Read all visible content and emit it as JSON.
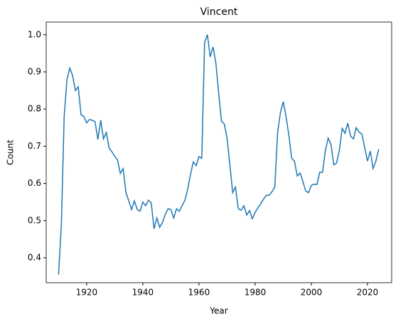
{
  "chart_data": {
    "type": "line",
    "title": "Vincent",
    "x_label": "Year",
    "y_label": "Count",
    "x": [
      1910,
      1911,
      1912,
      1913,
      1914,
      1915,
      1916,
      1917,
      1918,
      1919,
      1920,
      1921,
      1922,
      1923,
      1924,
      1925,
      1926,
      1927,
      1928,
      1929,
      1930,
      1931,
      1932,
      1933,
      1934,
      1935,
      1936,
      1937,
      1938,
      1939,
      1940,
      1941,
      1942,
      1943,
      1944,
      1945,
      1946,
      1947,
      1948,
      1949,
      1950,
      1951,
      1952,
      1953,
      1954,
      1955,
      1956,
      1957,
      1958,
      1959,
      1960,
      1961,
      1962,
      1963,
      1964,
      1965,
      1966,
      1967,
      1968,
      1969,
      1970,
      1971,
      1972,
      1973,
      1974,
      1975,
      1976,
      1977,
      1978,
      1979,
      1980,
      1981,
      1982,
      1983,
      1984,
      1985,
      1986,
      1987,
      1988,
      1989,
      1990,
      1991,
      1992,
      1993,
      1994,
      1995,
      1996,
      1997,
      1998,
      1999,
      2000,
      2001,
      2002,
      2003,
      2004,
      2005,
      2006,
      2007,
      2008,
      2009,
      2010,
      2011,
      2012,
      2013,
      2014,
      2015,
      2016,
      2017,
      2018,
      2019,
      2020,
      2021,
      2022,
      2023,
      2024
    ],
    "series": [
      {
        "color": "#1f77b4",
        "values": [
          0.355,
          0.49,
          0.78,
          0.88,
          0.91,
          0.89,
          0.85,
          0.86,
          0.785,
          0.78,
          0.763,
          0.772,
          0.77,
          0.766,
          0.718,
          0.77,
          0.72,
          0.737,
          0.695,
          0.685,
          0.673,
          0.663,
          0.627,
          0.64,
          0.575,
          0.553,
          0.53,
          0.553,
          0.53,
          0.525,
          0.55,
          0.54,
          0.555,
          0.548,
          0.478,
          0.507,
          0.482,
          0.495,
          0.517,
          0.532,
          0.53,
          0.507,
          0.532,
          0.525,
          0.54,
          0.555,
          0.585,
          0.625,
          0.658,
          0.648,
          0.672,
          0.668,
          0.98,
          1.0,
          0.94,
          0.967,
          0.925,
          0.845,
          0.767,
          0.76,
          0.722,
          0.65,
          0.575,
          0.59,
          0.532,
          0.528,
          0.54,
          0.515,
          0.527,
          0.505,
          0.522,
          0.535,
          0.545,
          0.558,
          0.568,
          0.568,
          0.578,
          0.59,
          0.737,
          0.79,
          0.82,
          0.78,
          0.73,
          0.668,
          0.66,
          0.62,
          0.628,
          0.605,
          0.58,
          0.575,
          0.595,
          0.598,
          0.597,
          0.63,
          0.63,
          0.688,
          0.722,
          0.705,
          0.65,
          0.655,
          0.69,
          0.748,
          0.735,
          0.762,
          0.727,
          0.72,
          0.75,
          0.738,
          0.733,
          0.697,
          0.66,
          0.687,
          0.64,
          0.66,
          0.692
        ]
      }
    ],
    "xlim": [
      1905.6,
      2028.6
    ],
    "ylim": [
      0.333,
      1.034
    ],
    "xticks": [
      1920,
      1940,
      1960,
      1980,
      2000,
      2020
    ],
    "yticks": [
      0.4,
      0.5,
      0.6,
      0.7,
      0.8,
      0.9,
      {
        "value": 1.0,
        "label": "1.0"
      }
    ]
  }
}
